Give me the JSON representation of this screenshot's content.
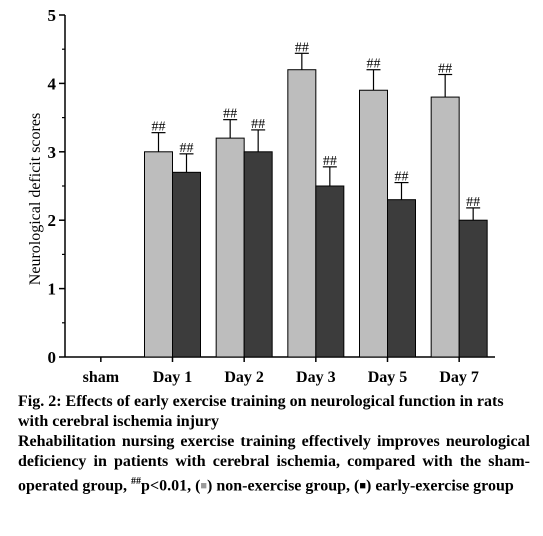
{
  "chart_data": {
    "type": "bar",
    "ylabel": "Neurological deficit scores",
    "xlabel": "",
    "ylim": [
      0,
      5
    ],
    "yticks": [
      "0",
      "1",
      "2",
      "3",
      "4",
      "5"
    ],
    "categories": [
      "sham",
      "Day 1",
      "Day 2",
      "Day 3",
      "Day 5",
      "Day 7"
    ],
    "series": [
      {
        "color": "#bdbdbd",
        "values": [
          0,
          3.0,
          3.2,
          4.2,
          3.9,
          3.8
        ],
        "errors": [
          0,
          0.28,
          0.27,
          0.24,
          0.3,
          0.33
        ],
        "annotations": [
          "",
          "##",
          "##",
          "##",
          "##",
          "##"
        ]
      },
      {
        "color": "#3c3c3c",
        "values": [
          0,
          2.7,
          3.0,
          2.5,
          2.3,
          2.0
        ],
        "errors": [
          0,
          0.27,
          0.32,
          0.28,
          0.25,
          0.18
        ],
        "annotations": [
          "",
          "##",
          "##",
          "##",
          "##",
          "##"
        ]
      }
    ],
    "grid": false,
    "legend": "none"
  },
  "caption": {
    "title": "Fig. 2: Effects of early exercise training on neurological function in rats with cerebral ischemia injury",
    "body_main": "Rehabilitation nursing exercise training effectively improves neurological deficiency in patients with cerebral ischemia, compared with the sham-operated group,",
    "sup": "##",
    "pvalue": "p<0.01,",
    "open_paren_1": "(",
    "square_1": "■",
    "close_paren_1": ")",
    "group_1": "non-exercise group,",
    "open_paren_2": "(",
    "square_2": "■",
    "close_paren_2": ")",
    "group_2": "early-exercise group"
  }
}
